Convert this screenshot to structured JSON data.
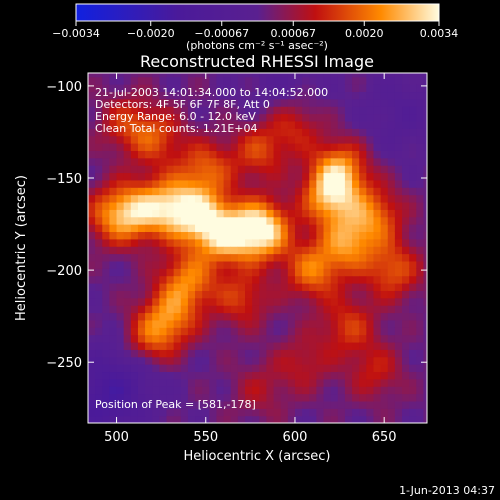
{
  "chart_data": {
    "type": "heatmap",
    "title": "Reconstructed RHESSI Image",
    "xlabel": "Heliocentric X (arcsec)",
    "ylabel": "Heliocentric Y (arcsec)",
    "xlim": [
      484,
      674
    ],
    "ylim": [
      -283,
      -93
    ],
    "x_ticks": [
      500,
      550,
      600,
      650
    ],
    "y_ticks": [
      -100,
      -150,
      -200,
      -250
    ],
    "x_tick_labels": [
      "500",
      "550",
      "600",
      "650"
    ],
    "y_tick_labels": [
      "−100",
      "−150",
      "−200",
      "−250"
    ],
    "info_lines": [
      "21-Jul-2003 14:01:34.000 to 14:04:52.000",
      "Detectors: 4F 5F 6F 7F 8F, Att 0",
      "Energy Range: 6.0 - 12.0 keV",
      "Clean    Total counts: 1.21E+04"
    ],
    "peak_label": "Position of Peak = [581,-178]",
    "peak_position": [
      581,
      -178
    ],
    "colorbar": {
      "range": [
        -0.0034,
        0.0034
      ],
      "tick_values": [
        -0.0034,
        -0.002,
        -0.00067,
        0.00067,
        0.002,
        0.0034
      ],
      "tick_labels": [
        "−0.0034",
        "−0.0020",
        "−0.00067",
        "0.00067",
        "0.0020",
        "0.0034"
      ],
      "units": "(photons cm⁻² s⁻¹ asec⁻²)"
    },
    "colors": {
      "negative_low": "#1020e0",
      "negative_mid": "#4a1a9a",
      "background": "#5a2090",
      "mid": "#c01010",
      "high": "#ff8a00",
      "peak": "#fffce0"
    },
    "sources": [
      {
        "x": 581,
        "y": -178,
        "value": 0.0034
      },
      {
        "x": 560,
        "y": -180,
        "value": 0.0026
      },
      {
        "x": 545,
        "y": -170,
        "value": 0.0022
      },
      {
        "x": 530,
        "y": -165,
        "value": 0.0021
      },
      {
        "x": 512,
        "y": -168,
        "value": 0.0019
      },
      {
        "x": 498,
        "y": -170,
        "value": 0.0017
      },
      {
        "x": 620,
        "y": -160,
        "value": 0.0024
      },
      {
        "x": 625,
        "y": -145,
        "value": 0.0021
      },
      {
        "x": 630,
        "y": -185,
        "value": 0.002
      },
      {
        "x": 610,
        "y": -200,
        "value": 0.0019
      },
      {
        "x": 645,
        "y": -170,
        "value": 0.0017
      },
      {
        "x": 655,
        "y": -200,
        "value": 0.0016
      },
      {
        "x": 550,
        "y": -145,
        "value": 0.0016
      },
      {
        "x": 580,
        "y": -135,
        "value": 0.0014
      },
      {
        "x": 600,
        "y": -120,
        "value": 0.0013
      },
      {
        "x": 522,
        "y": -128,
        "value": 0.0014
      },
      {
        "x": 540,
        "y": -205,
        "value": 0.0019
      },
      {
        "x": 530,
        "y": -225,
        "value": 0.0018
      },
      {
        "x": 518,
        "y": -238,
        "value": 0.0016
      },
      {
        "x": 570,
        "y": -215,
        "value": 0.0013
      },
      {
        "x": 630,
        "y": -230,
        "value": 0.0013
      },
      {
        "x": 645,
        "y": -255,
        "value": 0.001
      },
      {
        "x": 605,
        "y": -250,
        "value": 0.0009
      },
      {
        "x": 580,
        "y": -265,
        "value": 0.0007
      },
      {
        "x": 505,
        "y": -120,
        "value": 0.0011
      }
    ],
    "negative_regions": [
      {
        "x": 505,
        "y": -255,
        "value": -0.001
      },
      {
        "x": 595,
        "y": -105,
        "value": -0.0006
      },
      {
        "x": 660,
        "y": -115,
        "value": -0.0007
      },
      {
        "x": 490,
        "y": -275,
        "value": -0.0012
      }
    ]
  },
  "footer": {
    "date": "1-Jun-2013 04:37"
  }
}
